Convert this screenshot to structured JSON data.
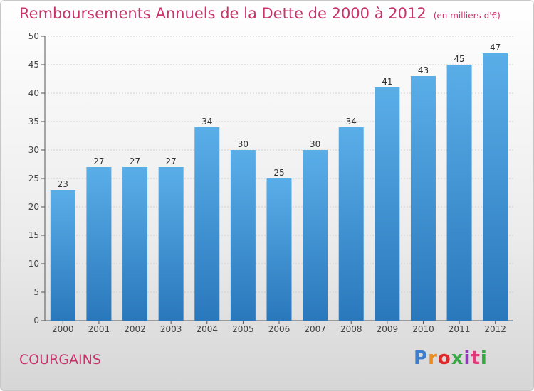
{
  "title": "Remboursements Annuels de la Dette de 2000 à 2012",
  "unit": "(en milliers d'€)",
  "location": "COURGAINS",
  "logo": {
    "text": "Proxiti",
    "colors": [
      "#3a7fd0",
      "#f08a1c",
      "#e0282b",
      "#3aa845",
      "#8c3cb0",
      "#e03a7a",
      "#3aa845"
    ]
  },
  "colors": {
    "bar_light": "#5aaee8",
    "bar_dark": "#2a78bc",
    "title": "#c8336a"
  },
  "chart_data": {
    "type": "bar",
    "categories": [
      "2000",
      "2001",
      "2002",
      "2003",
      "2004",
      "2005",
      "2006",
      "2007",
      "2008",
      "2009",
      "2010",
      "2011",
      "2012"
    ],
    "values": [
      23,
      27,
      27,
      27,
      34,
      30,
      25,
      30,
      34,
      41,
      43,
      45,
      47
    ],
    "ylim": [
      0,
      50
    ],
    "yticks": [
      0,
      5,
      10,
      15,
      20,
      25,
      30,
      35,
      40,
      45,
      50
    ],
    "grid": true
  }
}
